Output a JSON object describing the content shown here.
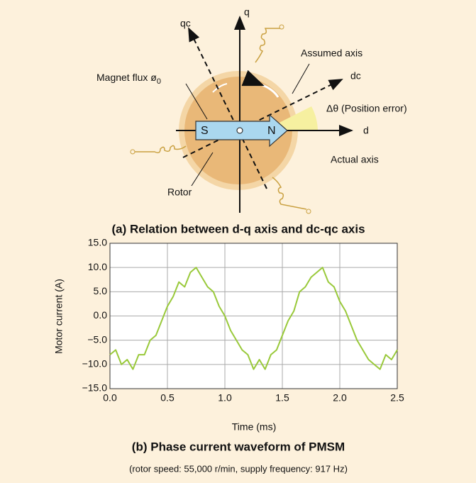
{
  "diagram": {
    "labels": {
      "q": "q",
      "qc": "qc",
      "assumed_axis": "Assumed axis",
      "dc": "dc",
      "magnet_flux": "Magnet flux ø",
      "magnet_flux_sub": "0",
      "position_error": "Δθ (Position error)",
      "d": "d",
      "actual_axis": "Actual axis",
      "rotor": "Rotor",
      "s": "S",
      "n": "N"
    },
    "caption": "(a) Relation between d-q axis and dc-qc axis"
  },
  "chart_data": {
    "type": "line",
    "title": "(b) Phase current waveform of PMSM",
    "subtitle": "(rotor speed: 55,000 r/min, supply frequency: 917 Hz)",
    "x_label": "Time (ms)",
    "y_label": "Motor current (A)",
    "x": [
      0,
      0.05,
      0.1,
      0.15,
      0.2,
      0.25,
      0.3,
      0.35,
      0.4,
      0.45,
      0.5,
      0.55,
      0.6,
      0.65,
      0.7,
      0.75,
      0.8,
      0.85,
      0.9,
      0.95,
      1.0,
      1.05,
      1.1,
      1.15,
      1.2,
      1.25,
      1.3,
      1.35,
      1.4,
      1.45,
      1.5,
      1.55,
      1.6,
      1.65,
      1.7,
      1.75,
      1.8,
      1.85,
      1.9,
      1.95,
      2.0,
      2.05,
      2.1,
      2.15,
      2.2,
      2.25,
      2.3,
      2.35,
      2.4,
      2.45,
      2.5
    ],
    "values": [
      -8,
      -7,
      -10,
      -9,
      -11,
      -8,
      -8,
      -5,
      -4,
      -1,
      2,
      4,
      7,
      6,
      9,
      10,
      8,
      6,
      5,
      2,
      0,
      -3,
      -5,
      -7,
      -8,
      -11,
      -9,
      -11,
      -8,
      -7,
      -4,
      -1,
      1,
      5,
      6,
      8,
      9,
      10,
      7,
      6,
      3,
      1,
      -2,
      -5,
      -7,
      -9,
      -10,
      -11,
      -8,
      -9,
      -7
    ],
    "color": "#99c93a",
    "xlim": [
      0,
      2.5
    ],
    "xticks": [
      {
        "value": 0,
        "label": "0.0"
      },
      {
        "value": 0.5,
        "label": "0.5"
      },
      {
        "value": 1,
        "label": "1.0"
      },
      {
        "value": 1.5,
        "label": "1.5"
      },
      {
        "value": 2,
        "label": "2.0"
      },
      {
        "value": 2.5,
        "label": "2.5"
      }
    ],
    "ylim": [
      -15,
      15
    ],
    "yticks": [
      {
        "value": -15,
        "label": "−15.0"
      },
      {
        "value": -10,
        "label": "−10.0"
      },
      {
        "value": -5,
        "label": "−5.0"
      },
      {
        "value": 0,
        "label": "0.0"
      },
      {
        "value": 5,
        "label": "5.0"
      },
      {
        "value": 10,
        "label": "10.0"
      },
      {
        "value": 15,
        "label": "15.0"
      }
    ],
    "grid": true
  }
}
